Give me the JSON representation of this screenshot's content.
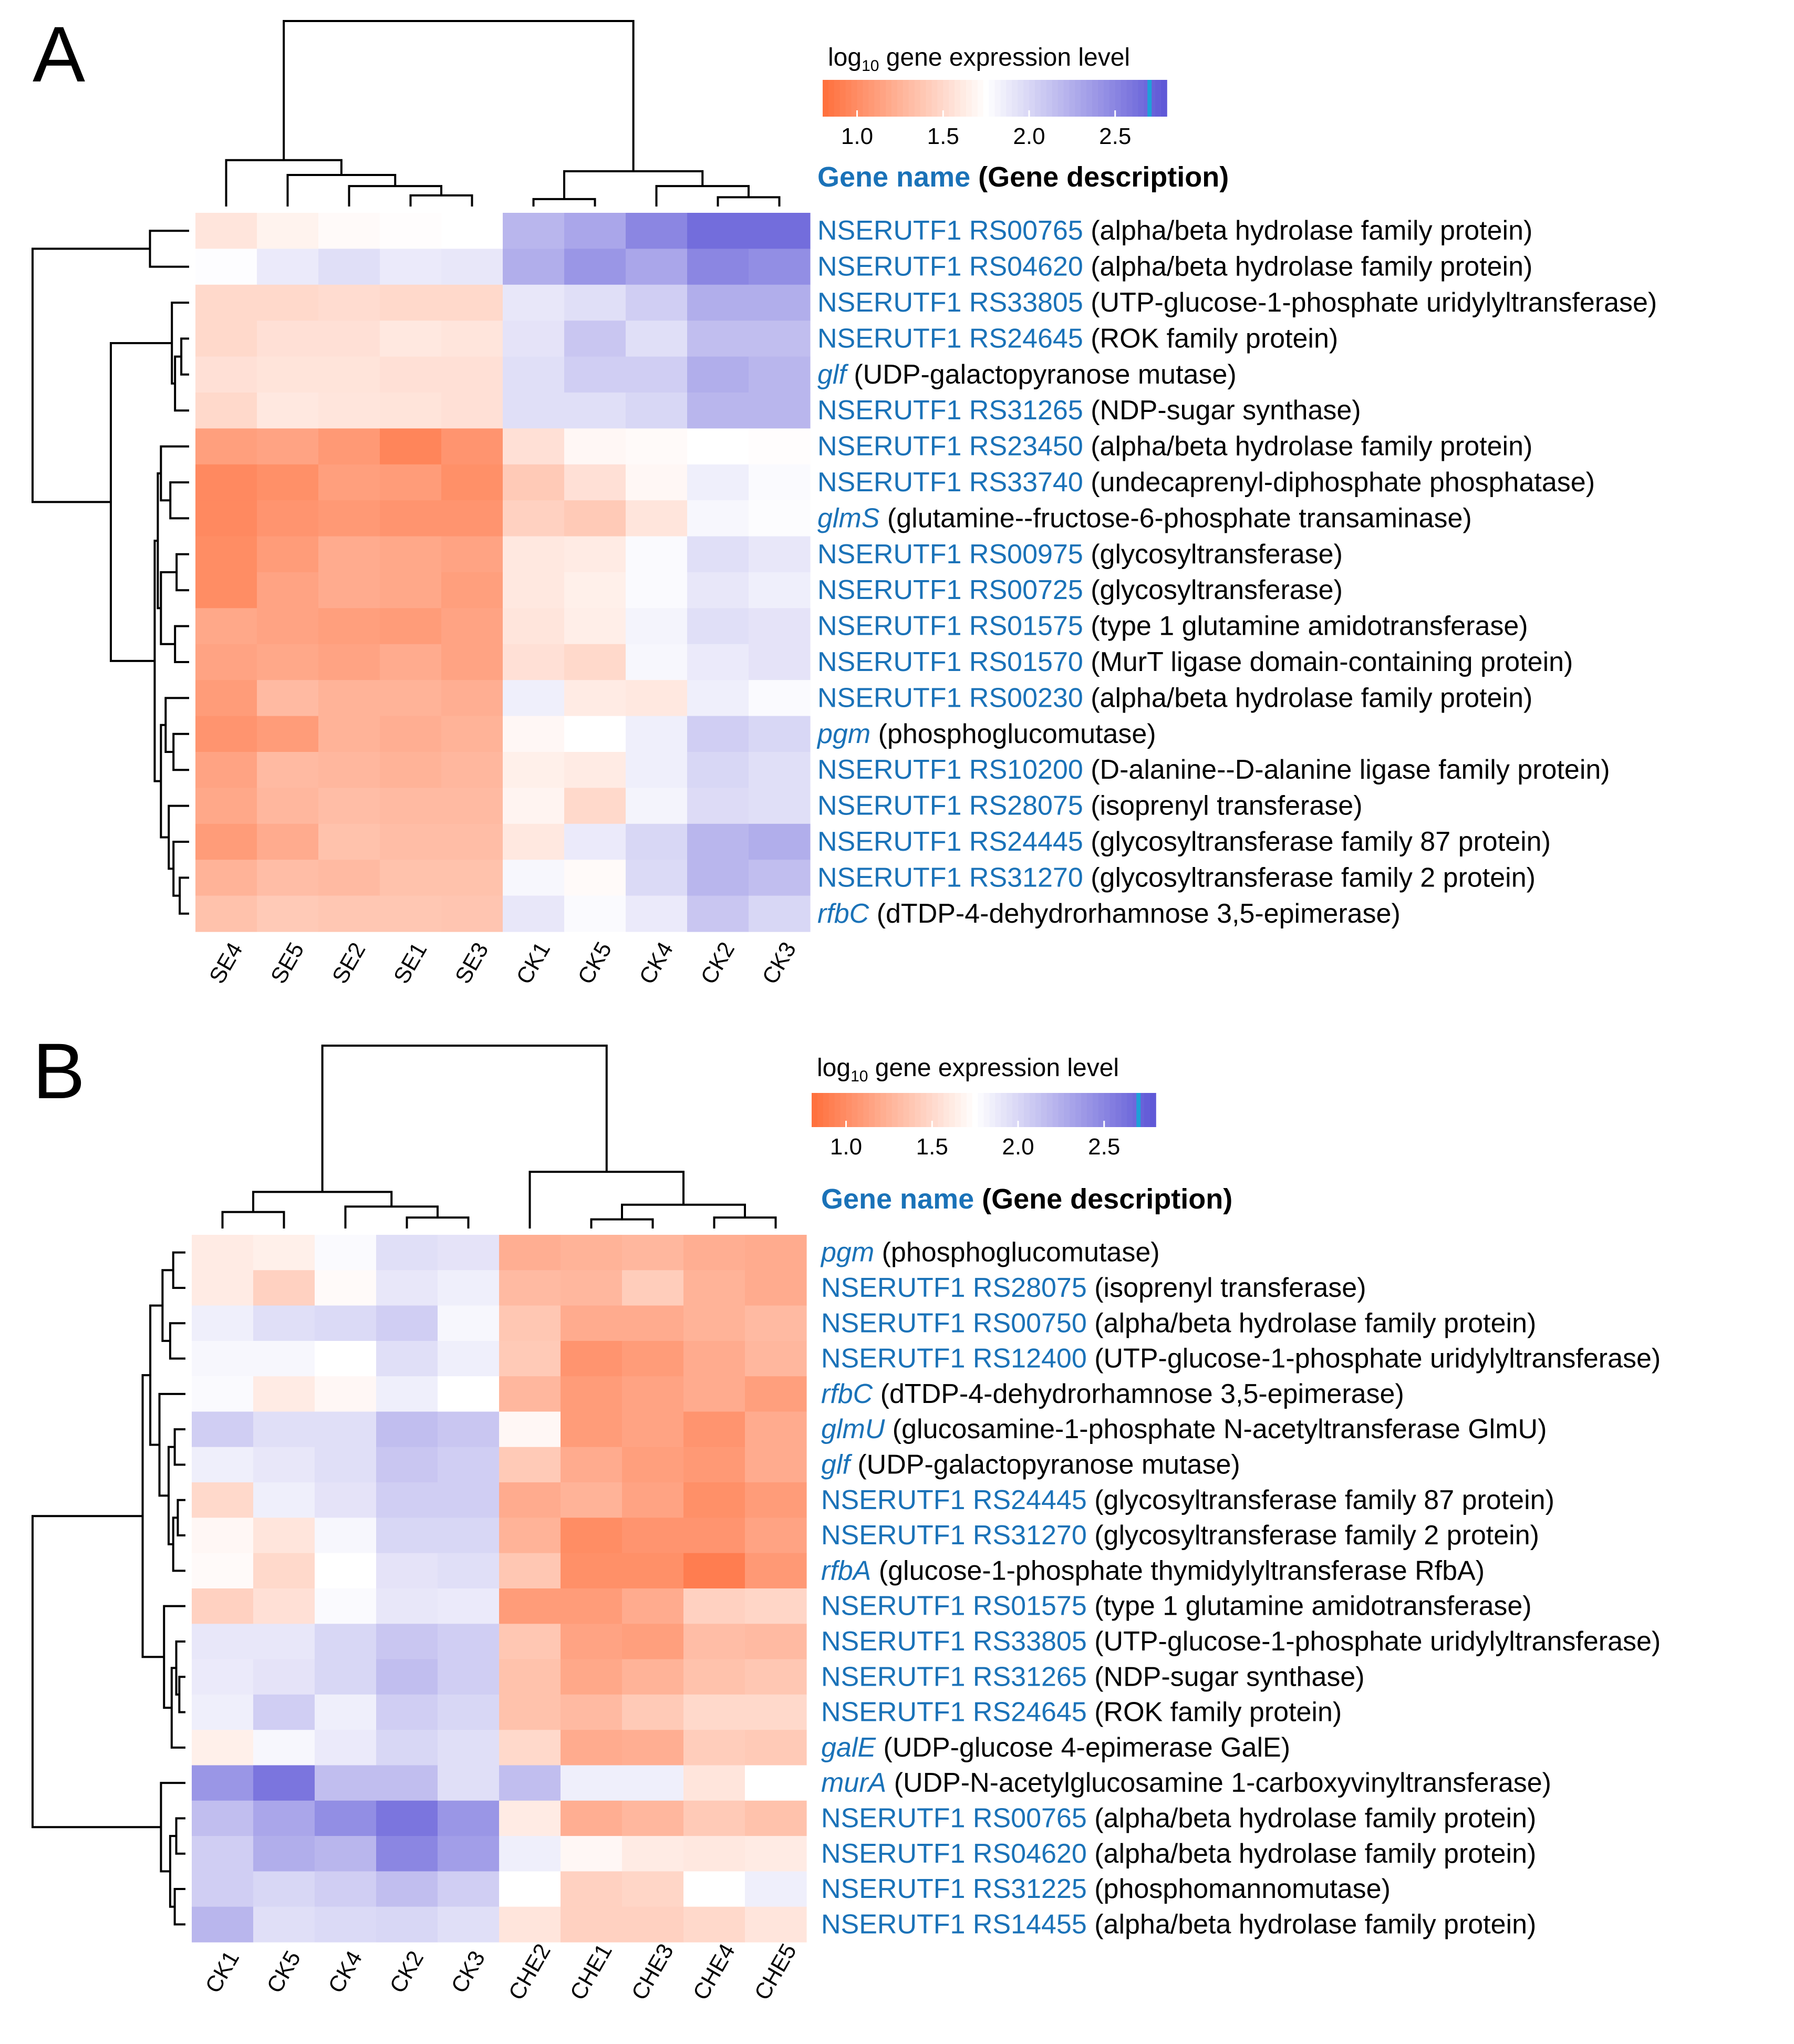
{
  "legend_labels": {
    "title_prefix": "log",
    "title_sub": "10",
    "title_suffix": " gene expression level",
    "header_name": "Gene name",
    "header_desc": " (Gene description)"
  },
  "colors": {
    "low": "#ff6e3b",
    "mid": "#ffffff",
    "high": "#5c55d6",
    "marker": "#1ea0d8",
    "gene_name": "#1a72b8",
    "text": "#000000",
    "tree": "#000000"
  },
  "chart_data": [
    {
      "type": "heatmap",
      "panel_label": "A",
      "title": "log10 gene expression level",
      "color_scale": {
        "min": 0.8,
        "mid": 1.75,
        "max": 2.8,
        "marker": 2.7,
        "ticks": [
          {
            "v": 1.0,
            "label": "1.0"
          },
          {
            "v": 1.5,
            "label": "1.5"
          },
          {
            "v": 2.0,
            "label": "2.0"
          },
          {
            "v": 2.5,
            "label": "2.5"
          }
        ]
      },
      "columns": [
        "SE4",
        "SE5",
        "SE2",
        "SE1",
        "SE3",
        "CK1",
        "CK5",
        "CK4",
        "CK2",
        "CK3"
      ],
      "rows": [
        {
          "name": "NSERUTF1 RS00765",
          "italic": false,
          "desc": "(alpha/beta hydrolase family protein)"
        },
        {
          "name": "NSERUTF1 RS04620",
          "italic": false,
          "desc": "(alpha/beta hydrolase family protein)"
        },
        {
          "name": "NSERUTF1 RS33805",
          "italic": false,
          "desc": "(UTP-glucose-1-phosphate uridylyltransferase)"
        },
        {
          "name": "NSERUTF1 RS24645",
          "italic": false,
          "desc": "(ROK family protein)"
        },
        {
          "name": "glf",
          "italic": true,
          "desc": "(UDP-galactopyranose mutase)"
        },
        {
          "name": "NSERUTF1 RS31265",
          "italic": false,
          "desc": "(NDP-sugar synthase)"
        },
        {
          "name": "NSERUTF1 RS23450",
          "italic": false,
          "desc": "(alpha/beta hydrolase family protein)"
        },
        {
          "name": "NSERUTF1 RS33740",
          "italic": false,
          "desc": "(undecaprenyl-diphosphate phosphatase)"
        },
        {
          "name": "glmS",
          "italic": true,
          "desc": "(glutamine--fructose-6-phosphate transaminase)"
        },
        {
          "name": "NSERUTF1 RS00975",
          "italic": false,
          "desc": "(glycosyltransferase)"
        },
        {
          "name": "NSERUTF1 RS00725",
          "italic": false,
          "desc": "(glycosyltransferase)"
        },
        {
          "name": "NSERUTF1 RS01575",
          "italic": false,
          "desc": "(type 1 glutamine amidotransferase)"
        },
        {
          "name": "NSERUTF1 RS01570",
          "italic": false,
          "desc": "(MurT ligase domain-containing protein)"
        },
        {
          "name": "NSERUTF1 RS00230",
          "italic": false,
          "desc": "(alpha/beta hydrolase family protein)"
        },
        {
          "name": "pgm",
          "italic": true,
          "desc": "(phosphoglucomutase)"
        },
        {
          "name": "NSERUTF1 RS10200",
          "italic": false,
          "desc": "(D-alanine--D-alanine ligase family protein)"
        },
        {
          "name": "NSERUTF1 RS28075",
          "italic": false,
          "desc": "(isoprenyl transferase)"
        },
        {
          "name": "NSERUTF1 RS24445",
          "italic": false,
          "desc": "(glycosyltransferase family 87 protein)"
        },
        {
          "name": "NSERUTF1 RS31270",
          "italic": false,
          "desc": "(glycosyltransferase family 2 protein)"
        },
        {
          "name": "rfbC",
          "italic": true,
          "desc": "(dTDP-4-dehydrorhamnose 3,5-epimerase)"
        }
      ],
      "values": [
        [
          1.58,
          1.67,
          1.72,
          1.74,
          1.75,
          2.2,
          2.3,
          2.5,
          2.65,
          2.65
        ],
        [
          1.76,
          1.88,
          1.95,
          1.88,
          1.9,
          2.25,
          2.4,
          2.3,
          2.5,
          2.45
        ],
        [
          1.5,
          1.5,
          1.52,
          1.5,
          1.5,
          1.9,
          1.95,
          2.05,
          2.25,
          2.25
        ],
        [
          1.5,
          1.55,
          1.55,
          1.6,
          1.58,
          1.92,
          2.1,
          1.95,
          2.15,
          2.15
        ],
        [
          1.55,
          1.57,
          1.57,
          1.55,
          1.55,
          1.95,
          2.05,
          2.05,
          2.25,
          2.2
        ],
        [
          1.5,
          1.6,
          1.58,
          1.57,
          1.55,
          1.95,
          1.95,
          2.0,
          2.2,
          2.2
        ],
        [
          1.12,
          1.15,
          1.08,
          0.95,
          1.05,
          1.55,
          1.7,
          1.72,
          1.75,
          1.74
        ],
        [
          0.98,
          1.02,
          1.12,
          1.1,
          1.02,
          1.4,
          1.55,
          1.7,
          1.85,
          1.78
        ],
        [
          0.98,
          1.05,
          1.08,
          1.05,
          1.05,
          1.45,
          1.4,
          1.58,
          1.8,
          1.77
        ],
        [
          1.0,
          1.1,
          1.2,
          1.18,
          1.15,
          1.6,
          1.62,
          1.78,
          1.95,
          1.9
        ],
        [
          1.0,
          1.15,
          1.2,
          1.18,
          1.12,
          1.6,
          1.65,
          1.78,
          1.9,
          1.85
        ],
        [
          1.18,
          1.15,
          1.12,
          1.1,
          1.15,
          1.58,
          1.64,
          1.82,
          1.95,
          1.92
        ],
        [
          1.15,
          1.18,
          1.15,
          1.2,
          1.15,
          1.55,
          1.5,
          1.8,
          1.88,
          1.92
        ],
        [
          1.1,
          1.3,
          1.25,
          1.25,
          1.22,
          1.85,
          1.62,
          1.6,
          1.85,
          1.78
        ],
        [
          1.05,
          1.1,
          1.25,
          1.22,
          1.25,
          1.7,
          1.75,
          1.85,
          2.05,
          2.0
        ],
        [
          1.15,
          1.3,
          1.28,
          1.25,
          1.28,
          1.65,
          1.62,
          1.85,
          2.0,
          1.95
        ],
        [
          1.18,
          1.28,
          1.32,
          1.3,
          1.3,
          1.68,
          1.5,
          1.82,
          1.97,
          1.95
        ],
        [
          1.1,
          1.2,
          1.35,
          1.32,
          1.32,
          1.6,
          1.88,
          2.0,
          2.2,
          2.25
        ],
        [
          1.25,
          1.32,
          1.3,
          1.35,
          1.35,
          1.8,
          1.72,
          1.98,
          2.2,
          2.15
        ],
        [
          1.35,
          1.4,
          1.38,
          1.38,
          1.37,
          1.9,
          1.78,
          1.88,
          2.1,
          2.0
        ]
      ],
      "col_tree": [
        [
          3,
          4
        ],
        [
          2,
          10
        ],
        [
          1,
          11
        ],
        [
          0,
          12
        ],
        [
          8,
          9
        ],
        [
          7,
          14
        ],
        [
          5,
          6
        ],
        [
          16,
          15
        ],
        [
          13,
          17
        ]
      ],
      "col_tree_heights": [
        0.06,
        0.11,
        0.17,
        0.25,
        0.05,
        0.11,
        0.04,
        0.19,
        1.0
      ],
      "row_tree": [
        [
          0,
          1
        ],
        [
          3,
          4
        ],
        [
          21,
          5
        ],
        [
          2,
          22
        ],
        [
          7,
          8
        ],
        [
          6,
          24
        ],
        [
          9,
          10
        ],
        [
          11,
          12
        ],
        [
          26,
          27
        ],
        [
          25,
          28
        ],
        [
          14,
          15
        ],
        [
          13,
          30
        ],
        [
          18,
          19
        ],
        [
          17,
          32
        ],
        [
          16,
          33
        ],
        [
          31,
          34
        ],
        [
          29,
          35
        ],
        [
          23,
          36
        ],
        [
          20,
          37
        ]
      ],
      "row_tree_heights": [
        0.25,
        0.05,
        0.09,
        0.11,
        0.12,
        0.18,
        0.08,
        0.09,
        0.18,
        0.2,
        0.1,
        0.15,
        0.06,
        0.1,
        0.13,
        0.18,
        0.22,
        0.5,
        1.0
      ]
    },
    {
      "type": "heatmap",
      "panel_label": "B",
      "title": "log10 gene expression level",
      "color_scale": {
        "min": 0.8,
        "mid": 1.75,
        "max": 2.8,
        "marker": 2.7,
        "ticks": [
          {
            "v": 1.0,
            "label": "1.0"
          },
          {
            "v": 1.5,
            "label": "1.5"
          },
          {
            "v": 2.0,
            "label": "2.0"
          },
          {
            "v": 2.5,
            "label": "2.5"
          }
        ]
      },
      "columns": [
        "CK1",
        "CK5",
        "CK4",
        "CK2",
        "CK3",
        "CHE2",
        "CHE1",
        "CHE3",
        "CHE4",
        "CHE5"
      ],
      "rows": [
        {
          "name": "pgm",
          "italic": true,
          "desc": "(phosphoglucomutase)"
        },
        {
          "name": "NSERUTF1 RS28075",
          "italic": false,
          "desc": "(isoprenyl transferase)"
        },
        {
          "name": "NSERUTF1 RS00750",
          "italic": false,
          "desc": "(alpha/beta hydrolase family protein)"
        },
        {
          "name": "NSERUTF1 RS12400",
          "italic": false,
          "desc": "(UTP-glucose-1-phosphate uridylyltransferase)"
        },
        {
          "name": "rfbC",
          "italic": true,
          "desc": "(dTDP-4-dehydrorhamnose 3,5-epimerase)"
        },
        {
          "name": "glmU",
          "italic": true,
          "desc": "(glucosamine-1-phosphate N-acetyltransferase GlmU)"
        },
        {
          "name": "glf",
          "italic": true,
          "desc": "(UDP-galactopyranose mutase)"
        },
        {
          "name": "NSERUTF1 RS24445",
          "italic": false,
          "desc": "(glycosyltransferase family 87 protein)"
        },
        {
          "name": "NSERUTF1 RS31270",
          "italic": false,
          "desc": "(glycosyltransferase family 2 protein)"
        },
        {
          "name": "rfbA",
          "italic": true,
          "desc": "(glucose-1-phosphate thymidylyltransferase RfbA)"
        },
        {
          "name": "NSERUTF1 RS01575",
          "italic": false,
          "desc": "(type 1 glutamine amidotransferase)"
        },
        {
          "name": "NSERUTF1 RS33805",
          "italic": false,
          "desc": "(UTP-glucose-1-phosphate uridylyltransferase)"
        },
        {
          "name": "NSERUTF1 RS31265",
          "italic": false,
          "desc": "(NDP-sugar synthase)"
        },
        {
          "name": "NSERUTF1 RS24645",
          "italic": false,
          "desc": "(ROK family protein)"
        },
        {
          "name": "galE",
          "italic": true,
          "desc": "(UDP-glucose 4-epimerase GalE)"
        },
        {
          "name": "murA",
          "italic": true,
          "desc": "(UDP-N-acetylglucosamine 1-carboxyvinyltransferase)"
        },
        {
          "name": "NSERUTF1 RS00765",
          "italic": false,
          "desc": "(alpha/beta hydrolase family protein)"
        },
        {
          "name": "NSERUTF1 RS04620",
          "italic": false,
          "desc": "(alpha/beta hydrolase family protein)"
        },
        {
          "name": "NSERUTF1 RS31225",
          "italic": false,
          "desc": "(phosphomannomutase)"
        },
        {
          "name": "NSERUTF1 RS14455",
          "italic": false,
          "desc": "(alpha/beta hydrolase family protein)"
        }
      ],
      "values": [
        [
          1.62,
          1.65,
          1.78,
          1.95,
          1.92,
          1.22,
          1.25,
          1.28,
          1.22,
          1.2
        ],
        [
          1.62,
          1.45,
          1.72,
          1.9,
          1.85,
          1.3,
          1.28,
          1.42,
          1.25,
          1.2
        ],
        [
          1.85,
          1.95,
          1.98,
          2.05,
          1.8,
          1.38,
          1.2,
          1.2,
          1.25,
          1.3
        ],
        [
          1.8,
          1.8,
          1.75,
          1.95,
          1.85,
          1.4,
          1.05,
          1.1,
          1.2,
          1.28
        ],
        [
          1.78,
          1.62,
          1.7,
          1.85,
          1.75,
          1.28,
          1.1,
          1.15,
          1.2,
          1.12
        ],
        [
          2.05,
          1.95,
          1.95,
          2.15,
          2.1,
          1.7,
          1.1,
          1.15,
          1.05,
          1.2
        ],
        [
          1.85,
          1.9,
          1.95,
          2.1,
          2.05,
          1.4,
          1.2,
          1.12,
          1.08,
          1.2
        ],
        [
          1.5,
          1.85,
          1.92,
          2.05,
          2.05,
          1.2,
          1.25,
          1.15,
          1.02,
          1.1
        ],
        [
          1.7,
          1.58,
          1.8,
          2.0,
          2.0,
          1.25,
          1.0,
          1.05,
          1.05,
          1.15
        ],
        [
          1.72,
          1.5,
          1.75,
          1.92,
          1.95,
          1.38,
          1.02,
          1.02,
          0.9,
          1.08
        ],
        [
          1.45,
          1.55,
          1.78,
          1.9,
          1.88,
          1.1,
          1.1,
          1.2,
          1.45,
          1.48
        ],
        [
          1.9,
          1.9,
          2.0,
          2.1,
          2.05,
          1.38,
          1.15,
          1.12,
          1.32,
          1.3
        ],
        [
          1.88,
          1.92,
          2.0,
          2.15,
          2.05,
          1.35,
          1.18,
          1.25,
          1.35,
          1.38
        ],
        [
          1.85,
          2.05,
          1.85,
          2.05,
          2.0,
          1.35,
          1.3,
          1.4,
          1.5,
          1.5
        ],
        [
          1.65,
          1.8,
          1.88,
          2.0,
          1.95,
          1.5,
          1.2,
          1.22,
          1.42,
          1.4
        ],
        [
          2.4,
          2.6,
          2.15,
          2.15,
          1.95,
          2.15,
          1.85,
          1.85,
          1.58,
          1.75
        ],
        [
          2.15,
          2.3,
          2.45,
          2.6,
          2.4,
          1.62,
          1.22,
          1.28,
          1.4,
          1.35
        ],
        [
          2.05,
          2.25,
          2.2,
          2.5,
          2.35,
          1.85,
          1.7,
          1.62,
          1.6,
          1.62
        ],
        [
          2.05,
          2.0,
          2.05,
          2.15,
          2.05,
          1.75,
          1.45,
          1.48,
          1.75,
          1.85
        ],
        [
          2.2,
          1.95,
          1.98,
          2.0,
          1.95,
          1.58,
          1.45,
          1.45,
          1.5,
          1.58
        ]
      ],
      "col_tree": [
        [
          0,
          1
        ],
        [
          3,
          4
        ],
        [
          2,
          11
        ],
        [
          10,
          12
        ],
        [
          6,
          7
        ],
        [
          8,
          9
        ],
        [
          14,
          15
        ],
        [
          5,
          16
        ],
        [
          13,
          17
        ]
      ],
      "col_tree_heights": [
        0.09,
        0.06,
        0.12,
        0.2,
        0.05,
        0.06,
        0.13,
        0.31,
        1.0
      ],
      "row_tree": [
        [
          0,
          1
        ],
        [
          2,
          3
        ],
        [
          20,
          21
        ],
        [
          5,
          6
        ],
        [
          7,
          8
        ],
        [
          24,
          9
        ],
        [
          23,
          25
        ],
        [
          4,
          26
        ],
        [
          22,
          27
        ],
        [
          12,
          13
        ],
        [
          11,
          29
        ],
        [
          30,
          14
        ],
        [
          10,
          31
        ],
        [
          28,
          32
        ],
        [
          16,
          17
        ],
        [
          18,
          19
        ],
        [
          34,
          35
        ],
        [
          15,
          36
        ],
        [
          33,
          37
        ]
      ],
      "row_tree_heights": [
        0.08,
        0.1,
        0.15,
        0.07,
        0.05,
        0.08,
        0.11,
        0.17,
        0.23,
        0.04,
        0.06,
        0.09,
        0.14,
        0.28,
        0.06,
        0.07,
        0.1,
        0.16,
        1.0
      ]
    }
  ]
}
